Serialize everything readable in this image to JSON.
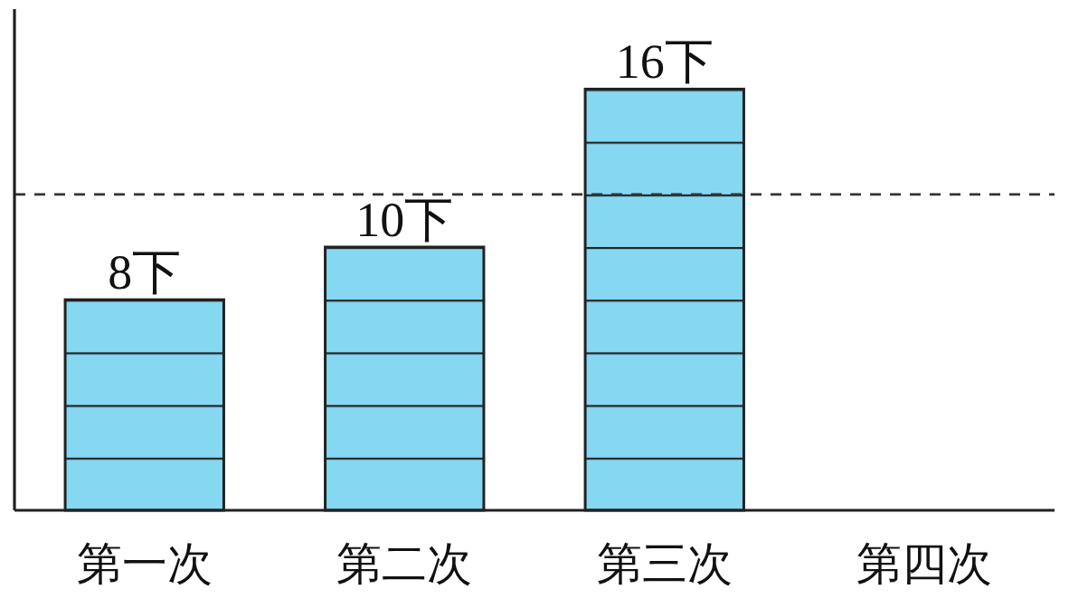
{
  "chart_data": {
    "type": "bar",
    "categories": [
      "第一次",
      "第二次",
      "第三次",
      "第四次"
    ],
    "values": [
      8,
      10,
      16,
      null
    ],
    "value_labels": [
      "8下",
      "10下",
      "16下",
      null
    ],
    "color": "#86d8f2",
    "ref_lines": [
      {
        "axis": "y",
        "value": 12,
        "line_style": "dashed",
        "color": "#333333"
      }
    ]
  }
}
